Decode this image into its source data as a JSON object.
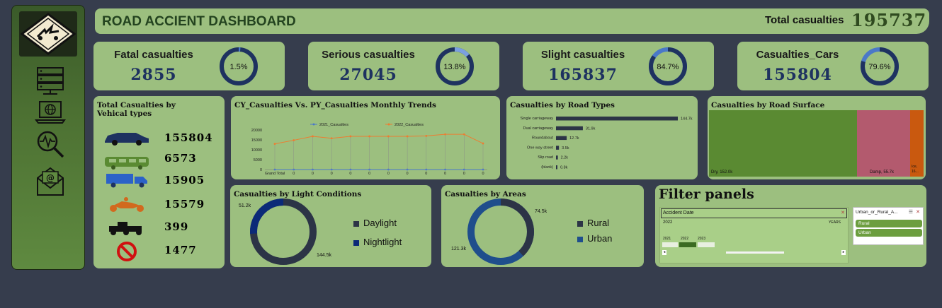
{
  "header": {
    "title": "ROAD ACCIENT DASHBOARD",
    "total_label": "Total casualties",
    "total_value": "195737"
  },
  "sidebar": {
    "icons": [
      "warning-logo-icon",
      "server-icon",
      "laptop-globe-icon",
      "search-pulse-icon",
      "email-icon"
    ]
  },
  "kpis": [
    {
      "label": "Fatal casualties",
      "value": "2855",
      "pct_label": "1.5%",
      "pct": 1.5
    },
    {
      "label": "Serious casualties",
      "value": "27045",
      "pct_label": "13.8%",
      "pct": 13.8
    },
    {
      "label": "Slight casualties",
      "value": "165837",
      "pct_label": "84.7%",
      "pct": 84.7
    },
    {
      "label": "Casualties_Cars",
      "value": "155804",
      "pct_label": "79.6%",
      "pct": 79.6
    }
  ],
  "vehicles": {
    "title": "Total Casualties by Vehical types",
    "items": [
      {
        "icon": "car-icon",
        "value": "155804",
        "color": "#1e3260"
      },
      {
        "icon": "bus-icon",
        "value": "6573",
        "color": "#5a8a32"
      },
      {
        "icon": "truck-icon",
        "value": "15905",
        "color": "#1e3260"
      },
      {
        "icon": "motorcycle-icon",
        "value": "15579",
        "color": "#d2691e"
      },
      {
        "icon": "tractor-icon",
        "value": "399",
        "color": "#111111"
      },
      {
        "icon": "no-entry-icon",
        "value": "1477",
        "color": "#d01010"
      }
    ]
  },
  "trend": {
    "title": "CY_Casualties Vs. PY_Casualties Monthly Trends",
    "legend": [
      "2021_Casualties",
      "2022_Casualties"
    ],
    "y_ticks": [
      "20000",
      "15000",
      "10000",
      "5000",
      "0"
    ],
    "x_labels": [
      "Grand Total",
      "0",
      "0",
      "0",
      "0",
      "0",
      "0",
      "0",
      "0",
      "0",
      "0",
      "0"
    ]
  },
  "road_types": {
    "title": "Casualties by Road Types",
    "items": [
      {
        "label": "Single carriageway",
        "value_label": "144.7k"
      },
      {
        "label": "Dual carriageway",
        "value_label": "31.9k"
      },
      {
        "label": "Roundabout",
        "value_label": "12.7k"
      },
      {
        "label": "One way street",
        "value_label": "3.5k"
      },
      {
        "label": "Slip road",
        "value_label": "2.2k"
      },
      {
        "label": "(blank)",
        "value_label": "0.8k"
      }
    ]
  },
  "road_surface": {
    "title": "Casualties by Road Surface",
    "items": [
      {
        "label": "Dry, 152.0k",
        "color": "#5a8a32"
      },
      {
        "label": "Damp, 55.7k",
        "color": "#b35a6e"
      },
      {
        "label": "Ice, 16...",
        "color": "#c9590f"
      }
    ]
  },
  "light": {
    "title": "Casualties by Light Conditions",
    "labels": [
      "51.2k",
      "144.5k"
    ],
    "legend": [
      "Daylight",
      "Nightlight"
    ]
  },
  "areas": {
    "title": "Casualties by Areas",
    "labels": [
      "74.5k",
      "121.3k"
    ],
    "legend": [
      "Rural",
      "Urban"
    ]
  },
  "filter": {
    "title": "Filter panels",
    "date_header": "Accident Date",
    "year": "2022",
    "years_label": "YEARS",
    "timeline": [
      "2021",
      "2022",
      "2023"
    ],
    "slicer_header": "Urban_or_Rural_A...",
    "slicer_items": [
      "Rural",
      "Urban"
    ]
  },
  "chart_data": [
    {
      "type": "bar",
      "title": "Casualties by Road Types",
      "categories": [
        "Single carriageway",
        "Dual carriageway",
        "Roundabout",
        "One way street",
        "Slip road",
        "(blank)"
      ],
      "values": [
        144.7,
        31.9,
        12.7,
        3.5,
        2.2,
        0.8
      ]
    },
    {
      "type": "line",
      "title": "CY_Casualties Vs. PY_Casualties Monthly Trends",
      "x": [
        "Grand Total",
        "0",
        "0",
        "0",
        "0",
        "0",
        "0",
        "0",
        "0",
        "0",
        "0",
        "0"
      ],
      "series": [
        {
          "name": "2021_Casualties",
          "values": [
            0,
            0,
            0,
            0,
            0,
            0,
            0,
            0,
            0,
            0,
            0,
            0
          ]
        },
        {
          "name": "2022_Casualties",
          "values": [
            13000,
            14800,
            16800,
            15800,
            16800,
            16800,
            16800,
            16800,
            17000,
            17800,
            17800,
            13200
          ]
        }
      ],
      "ylim": [
        0,
        20000
      ]
    },
    {
      "type": "pie",
      "title": "Casualties by Light Conditions",
      "categories": [
        "Daylight",
        "Nightlight"
      ],
      "values": [
        144.5,
        51.2
      ]
    },
    {
      "type": "pie",
      "title": "Casualties by Areas",
      "categories": [
        "Rural",
        "Urban"
      ],
      "values": [
        74.5,
        121.3
      ]
    },
    {
      "type": "heatmap",
      "title": "Casualties by Road Surface",
      "categories": [
        "Dry",
        "Damp",
        "Ice"
      ],
      "values": [
        152.0,
        55.7,
        16
      ]
    }
  ]
}
